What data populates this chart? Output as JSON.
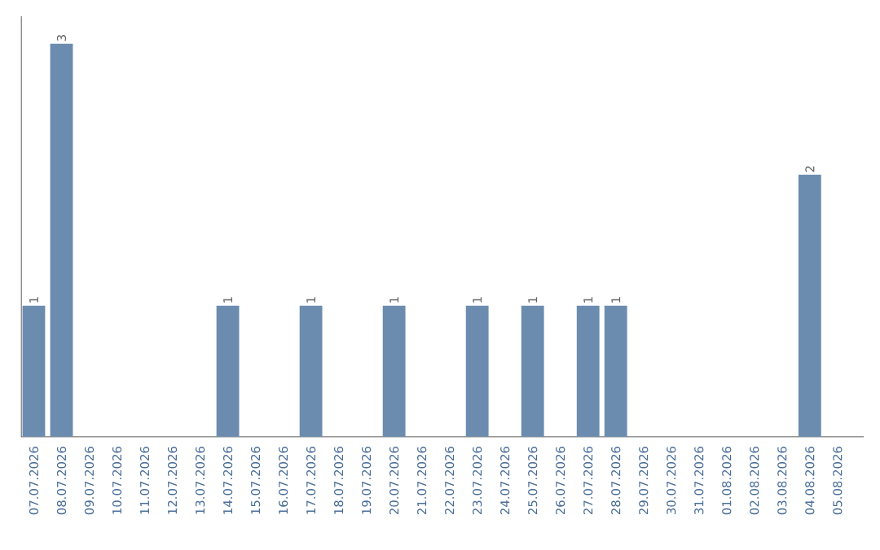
{
  "chart_data": {
    "type": "bar",
    "categories": [
      "07.07.2026",
      "08.07.2026",
      "09.07.2026",
      "10.07.2026",
      "11.07.2026",
      "12.07.2026",
      "13.07.2026",
      "14.07.2026",
      "15.07.2026",
      "16.07.2026",
      "17.07.2026",
      "18.07.2026",
      "19.07.2026",
      "20.07.2026",
      "21.07.2026",
      "22.07.2026",
      "23.07.2026",
      "24.07.2026",
      "25.07.2026",
      "26.07.2026",
      "27.07.2026",
      "28.07.2026",
      "29.07.2026",
      "30.07.2026",
      "31.07.2026",
      "01.08.2026",
      "02.08.2026",
      "03.08.2026",
      "04.08.2026",
      "05.08.2026"
    ],
    "values": [
      1,
      3,
      0,
      0,
      0,
      0,
      0,
      1,
      0,
      0,
      1,
      0,
      0,
      1,
      0,
      0,
      1,
      0,
      1,
      0,
      1,
      1,
      0,
      0,
      0,
      0,
      0,
      0,
      2,
      0
    ],
    "value_labels": [
      "1",
      "3",
      null,
      null,
      null,
      null,
      null,
      "1",
      null,
      null,
      "1",
      null,
      null,
      "1",
      null,
      null,
      "1",
      null,
      "1",
      null,
      "1",
      "1",
      null,
      null,
      null,
      null,
      null,
      null,
      "2",
      null
    ],
    "color": "#6b8cae"
  }
}
